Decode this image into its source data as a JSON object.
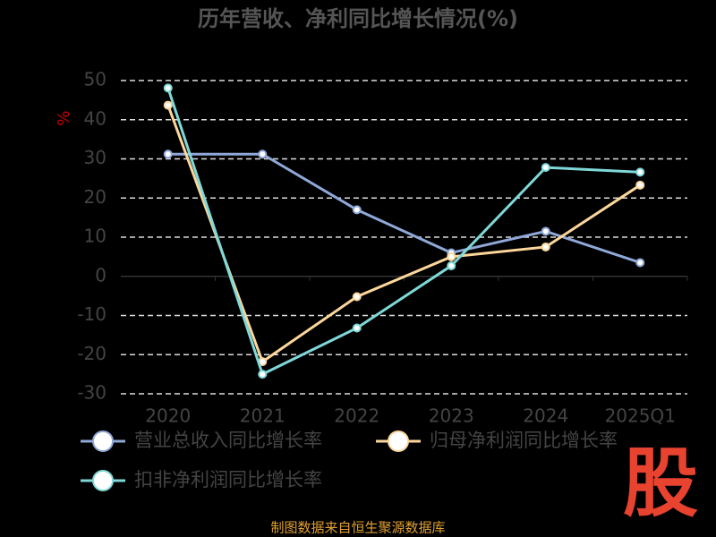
{
  "chart_data": {
    "type": "line",
    "title": "历年营收、净利同比增长情况(%)",
    "y_label": "%",
    "categories": [
      "2020",
      "2021",
      "2022",
      "2023",
      "2024",
      "2025Q1"
    ],
    "series": [
      {
        "name": "营业总收入同比增长率",
        "color": "#8fa8d8",
        "values": [
          31.2,
          31.2,
          17.0,
          6.0,
          11.5,
          3.5
        ]
      },
      {
        "name": "归母净利润同比增长率",
        "color": "#fcd69a",
        "values": [
          43.7,
          -21.8,
          -5.2,
          5.0,
          7.5,
          23.3
        ]
      },
      {
        "name": "扣非净利润同比增长率",
        "color": "#7fd8d8",
        "values": [
          48.1,
          -25.0,
          -13.2,
          2.7,
          27.8,
          26.6
        ]
      }
    ],
    "ylim": [
      -30,
      50
    ],
    "yticks": [
      -30,
      -20,
      -10,
      0,
      10,
      20,
      30,
      40,
      50
    ],
    "grid": true,
    "source": "制图数据来自恒生聚源数据库",
    "logo": "股"
  }
}
